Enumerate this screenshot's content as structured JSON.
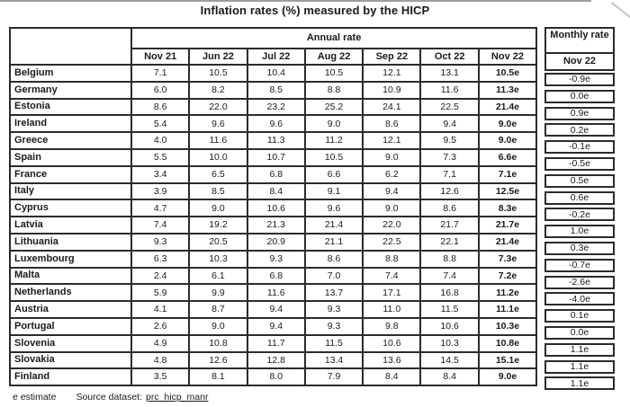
{
  "title": "Inflation rates (%) measured by the HICP",
  "table": {
    "group_header": "Annual rate",
    "columns": [
      "Nov 21",
      "Jun 22",
      "Jul 22",
      "Aug 22",
      "Sep 22",
      "Oct 22",
      "Nov 22"
    ],
    "rows": [
      {
        "country": "Belgium",
        "values": [
          "7.1",
          "10.5",
          "10.4",
          "10.5",
          "12.1",
          "13.1",
          "10.5e"
        ],
        "monthly": "-0.9e"
      },
      {
        "country": "Germany",
        "values": [
          "6.0",
          "8.2",
          "8.5",
          "8.8",
          "10.9",
          "11.6",
          "11.3e"
        ],
        "monthly": "0.0e"
      },
      {
        "country": "Estonia",
        "values": [
          "8.6",
          "22.0",
          "23.2",
          "25.2",
          "24.1",
          "22.5",
          "21.4e"
        ],
        "monthly": "0.9e"
      },
      {
        "country": "Ireland",
        "values": [
          "5.4",
          "9.6",
          "9.6",
          "9.0",
          "8.6",
          "9.4",
          "9.0e"
        ],
        "monthly": "0.2e"
      },
      {
        "country": "Greece",
        "values": [
          "4.0",
          "11.6",
          "11.3",
          "11.2",
          "12.1",
          "9.5",
          "9.0e"
        ],
        "monthly": "-0.1e"
      },
      {
        "country": "Spain",
        "values": [
          "5.5",
          "10.0",
          "10.7",
          "10.5",
          "9.0",
          "7.3",
          "6.6e"
        ],
        "monthly": "-0.5e"
      },
      {
        "country": "France",
        "values": [
          "3.4",
          "6.5",
          "6.8",
          "6.6",
          "6.2",
          "7.1",
          "7.1e"
        ],
        "monthly": "0.5e"
      },
      {
        "country": "Italy",
        "values": [
          "3.9",
          "8.5",
          "8.4",
          "9.1",
          "9.4",
          "12.6",
          "12.5e"
        ],
        "monthly": "0.6e"
      },
      {
        "country": "Cyprus",
        "values": [
          "4.7",
          "9.0",
          "10.6",
          "9.6",
          "9.0",
          "8.6",
          "8.3e"
        ],
        "monthly": "-0.2e"
      },
      {
        "country": "Latvia",
        "values": [
          "7.4",
          "19.2",
          "21.3",
          "21.4",
          "22.0",
          "21.7",
          "21.7e"
        ],
        "monthly": "1.0e"
      },
      {
        "country": "Lithuania",
        "values": [
          "9.3",
          "20.5",
          "20.9",
          "21.1",
          "22.5",
          "22.1",
          "21.4e"
        ],
        "monthly": "0.3e"
      },
      {
        "country": "Luxembourg",
        "values": [
          "6.3",
          "10.3",
          "9.3",
          "8.6",
          "8.8",
          "8.8",
          "7.3e"
        ],
        "monthly": "-0.7e"
      },
      {
        "country": "Malta",
        "values": [
          "2.4",
          "6.1",
          "6.8",
          "7.0",
          "7.4",
          "7.4",
          "7.2e"
        ],
        "monthly": "-2.6e"
      },
      {
        "country": "Netherlands",
        "values": [
          "5.9",
          "9.9",
          "11.6",
          "13.7",
          "17.1",
          "16.8",
          "11.2e"
        ],
        "monthly": "-4.0e"
      },
      {
        "country": "Austria",
        "values": [
          "4.1",
          "8.7",
          "9.4",
          "9.3",
          "11.0",
          "11.5",
          "11.1e"
        ],
        "monthly": "0.1e"
      },
      {
        "country": "Portugal",
        "values": [
          "2.6",
          "9.0",
          "9.4",
          "9.3",
          "9.8",
          "10.6",
          "10.3e"
        ],
        "monthly": "0.0e"
      },
      {
        "country": "Slovenia",
        "values": [
          "4.9",
          "10.8",
          "11.7",
          "11.5",
          "10.6",
          "10.3",
          "10.8e"
        ],
        "monthly": "1.1e"
      },
      {
        "country": "Slovakia",
        "values": [
          "4.8",
          "12.6",
          "12.8",
          "13.4",
          "13.6",
          "14.5",
          "15.1e"
        ],
        "monthly": "1.1e"
      },
      {
        "country": "Finland",
        "values": [
          "3.5",
          "8.1",
          "8.0",
          "7.9",
          "8.4",
          "8.4",
          "9.0e"
        ],
        "monthly": "1.1e"
      }
    ]
  },
  "monthly_panel": {
    "header": "Monthly rate",
    "subheader": "Nov 22"
  },
  "footer": {
    "estimate_note": "e estimate",
    "source_label": "Source dataset:",
    "source_link": "prc_hicp_manr"
  },
  "colors": {
    "border": "#2b2b2b",
    "text": "#1a1a1a",
    "top_strip": "#9e9e9e"
  }
}
